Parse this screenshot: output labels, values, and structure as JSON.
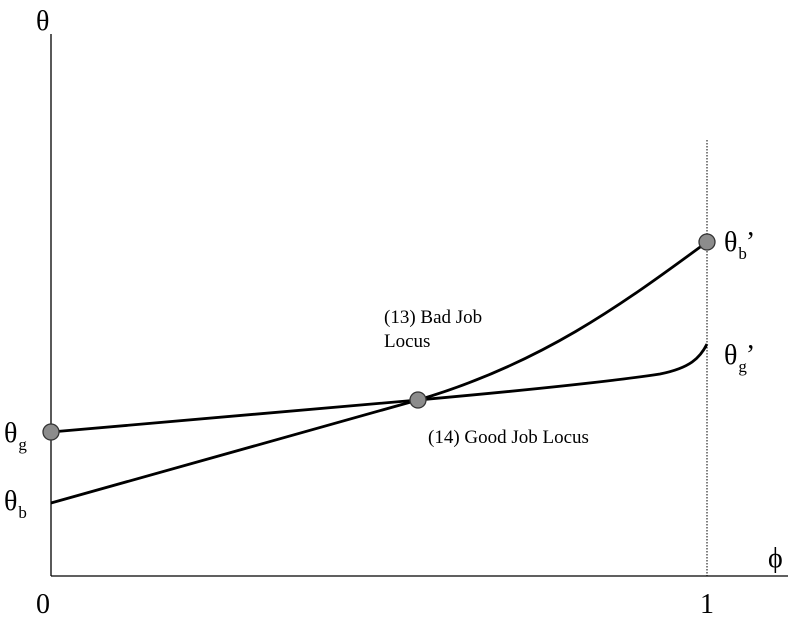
{
  "axes": {
    "y_label": "θ",
    "x_label": "ϕ",
    "x_origin_tick": "0",
    "x_end_tick": "1"
  },
  "curves": {
    "bad_job": {
      "label_line1": "(13) Bad Job",
      "label_line2": "Locus"
    },
    "good_job": {
      "label": "(14) Good Job Locus"
    }
  },
  "points": {
    "theta_g": {
      "symbol": "θ",
      "subscript": "g"
    },
    "theta_b": {
      "symbol": "θ",
      "subscript": "b"
    },
    "theta_b_prime": {
      "symbol": "θ",
      "subscript": "b",
      "prime": "’"
    },
    "theta_g_prime": {
      "symbol": "θ",
      "subscript": "g",
      "prime": "’"
    }
  },
  "colors": {
    "line": "#000000",
    "marker_fill": "#8c8c8c",
    "marker_stroke": "#333333"
  }
}
